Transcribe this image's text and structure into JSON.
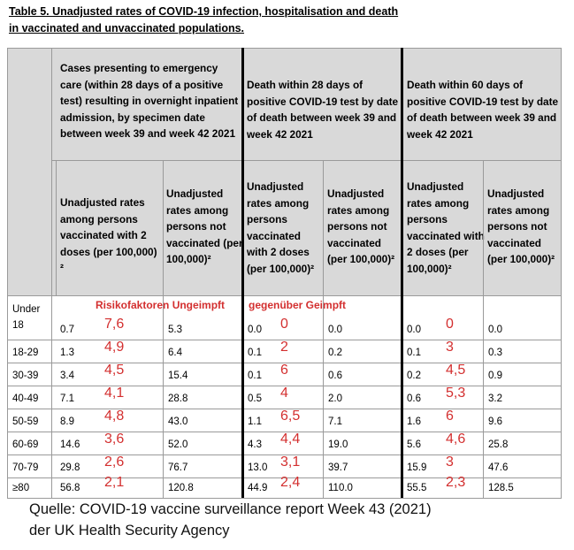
{
  "title": {
    "line1": "Table 5. Unadjusted rates of COVID-19 infection, hospitalisation and death",
    "line2": "in vaccinated and unvaccinated populations."
  },
  "groups": [
    "Cases presenting to emergency care (within 28 days of a positive test) resulting in overnight inpatient admission, by specimen date between week 39 and week 42 2021",
    "Death within 28 days of positive COVID-19 test by date of death between week 39 and week 42 2021",
    "Death within 60 days of positive COVID-19 test by date of death between week 39 and week 42 2021"
  ],
  "subheaders": {
    "h1": "Unadjusted rates among persons vaccinated with 2 doses (per 100,000) ²",
    "h2": "Unadjusted rates among persons not vaccinated (per 100,000)²",
    "h3": "Unadjusted rates among persons vaccinated with 2 doses (per 100,000)²",
    "h4": "Unadjusted rates among persons not vaccinated (per 100,000)²",
    "h5": "Unadjusted rates among persons vaccinated with 2 doses (per 100,000)²",
    "h6": "Unadjusted rates among persons not vaccinated (per 100,000)²"
  },
  "annotation": {
    "part1": "Risikofaktoren Ungeimpft",
    "part2": "gegenüber Geimpft"
  },
  "rows": [
    {
      "age": "Under 18",
      "hv": "0.7",
      "hr": "7,6",
      "hu": "5.3",
      "d28v": "0.0",
      "d28r": "0",
      "d28u": "0.0",
      "d60v": "0.0",
      "d60r": "0",
      "d60u": "0.0"
    },
    {
      "age": "18-29",
      "hv": "1.3",
      "hr": "4,9",
      "hu": "6.4",
      "d28v": "0.1",
      "d28r": "2",
      "d28u": "0.2",
      "d60v": "0.1",
      "d60r": "3",
      "d60u": "0.3"
    },
    {
      "age": "30-39",
      "hv": "3.4",
      "hr": "4,5",
      "hu": "15.4",
      "d28v": "0.1",
      "d28r": "6",
      "d28u": "0.6",
      "d60v": "0.2",
      "d60r": "4,5",
      "d60u": "0.9"
    },
    {
      "age": "40-49",
      "hv": "7.1",
      "hr": "4,1",
      "hu": "28.8",
      "d28v": "0.5",
      "d28r": "4",
      "d28u": "2.0",
      "d60v": "0.6",
      "d60r": "5,3",
      "d60u": "3.2"
    },
    {
      "age": "50-59",
      "hv": "8.9",
      "hr": "4,8",
      "hu": "43.0",
      "d28v": "1.1",
      "d28r": "6,5",
      "d28u": "7.1",
      "d60v": "1.6",
      "d60r": "6",
      "d60u": "9.6"
    },
    {
      "age": "60-69",
      "hv": "14.6",
      "hr": "3,6",
      "hu": "52.0",
      "d28v": "4.3",
      "d28r": "4,4",
      "d28u": "19.0",
      "d60v": "5.6",
      "d60r": "4,6",
      "d60u": "25.8"
    },
    {
      "age": "70-79",
      "hv": "29.8",
      "hr": "2,6",
      "hu": "76.7",
      "d28v": "13.0",
      "d28r": "3,1",
      "d28u": "39.7",
      "d60v": "15.9",
      "d60r": "3",
      "d60u": "47.6"
    },
    {
      "age": "≥80",
      "hv": "56.8",
      "hr": "2,1",
      "hu": "120.8",
      "d28v": "44.9",
      "d28r": "2,4",
      "d28u": "110.0",
      "d60v": "55.5",
      "d60r": "2,3",
      "d60u": "128.5"
    }
  ],
  "source": {
    "line1": "Quelle: COVID-19 vaccine surveillance report Week 43 (2021)",
    "line2": "der UK Health Security Agency"
  }
}
